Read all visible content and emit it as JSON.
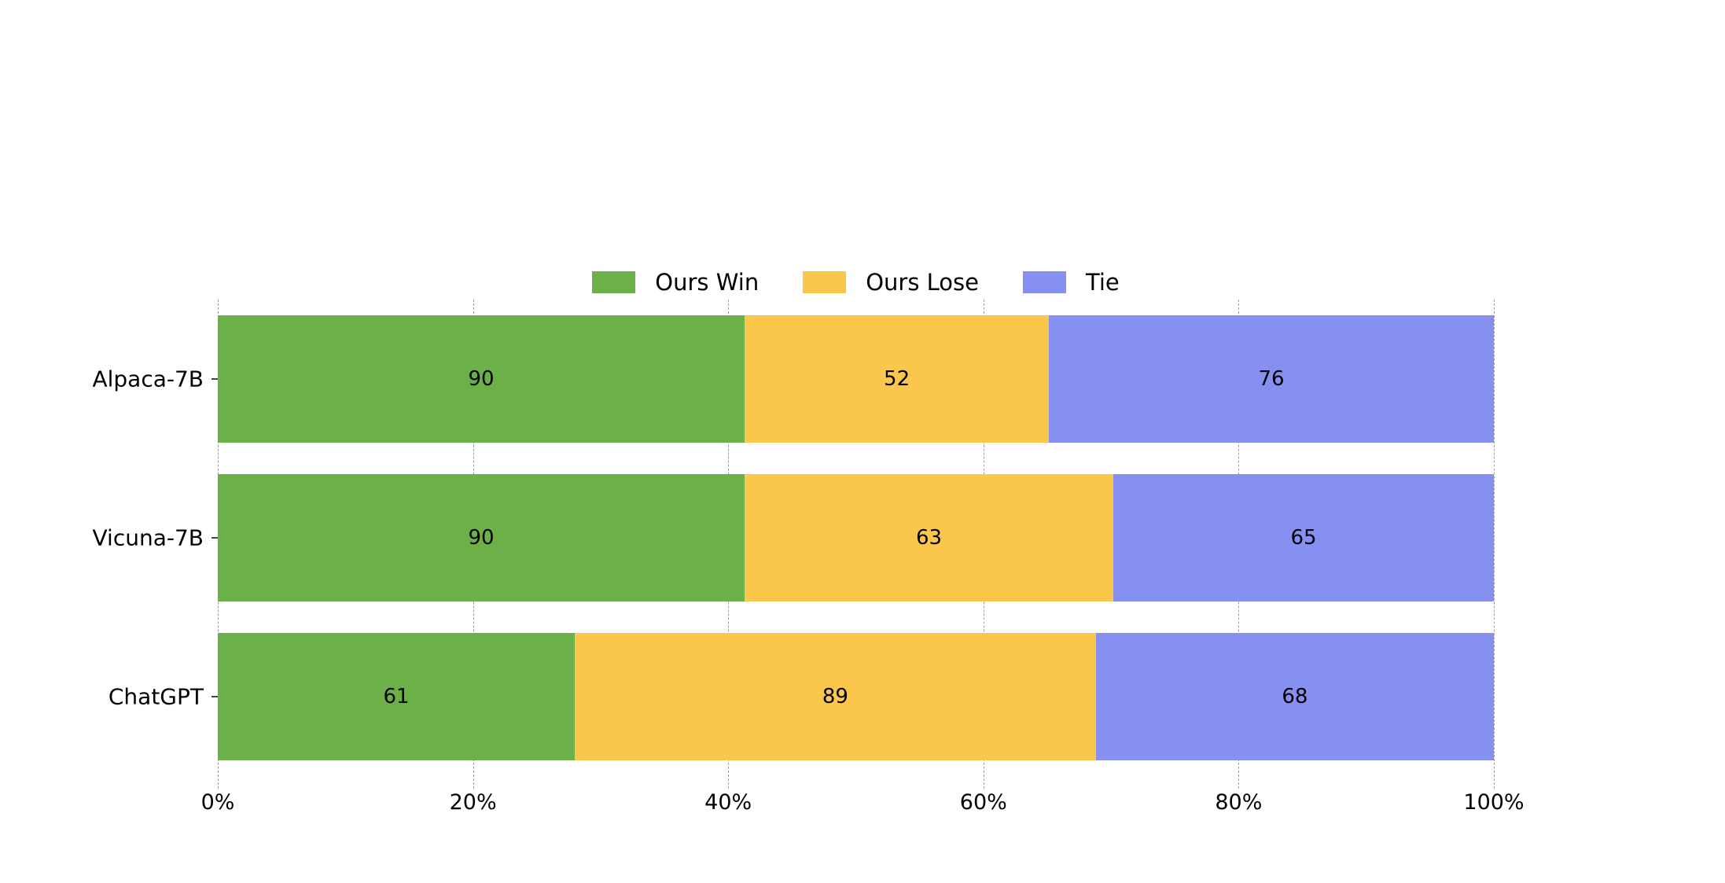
{
  "chart_data": {
    "type": "bar",
    "orientation": "horizontal",
    "stacked": true,
    "normalized_to_percent": true,
    "title": "",
    "categories": [
      "Alpaca-7B",
      "Vicuna-7B",
      "ChatGPT"
    ],
    "series": [
      {
        "name": "Ours Win",
        "color": "#6cb04a",
        "values": [
          90,
          90,
          61
        ]
      },
      {
        "name": "Ours Lose",
        "color": "#fac74c",
        "values": [
          52,
          63,
          89
        ]
      },
      {
        "name": "Tie",
        "color": "#8690f0",
        "values": [
          76,
          65,
          68
        ]
      }
    ],
    "x_ticks": [
      "0%",
      "20%",
      "40%",
      "60%",
      "80%",
      "100%"
    ],
    "xlim": [
      0,
      100
    ],
    "grid": "vertical-dashed",
    "grid_color": "#9e9e9e",
    "legend_position": "top-center",
    "text_color": "#000000",
    "background_color": "#ffffff"
  }
}
